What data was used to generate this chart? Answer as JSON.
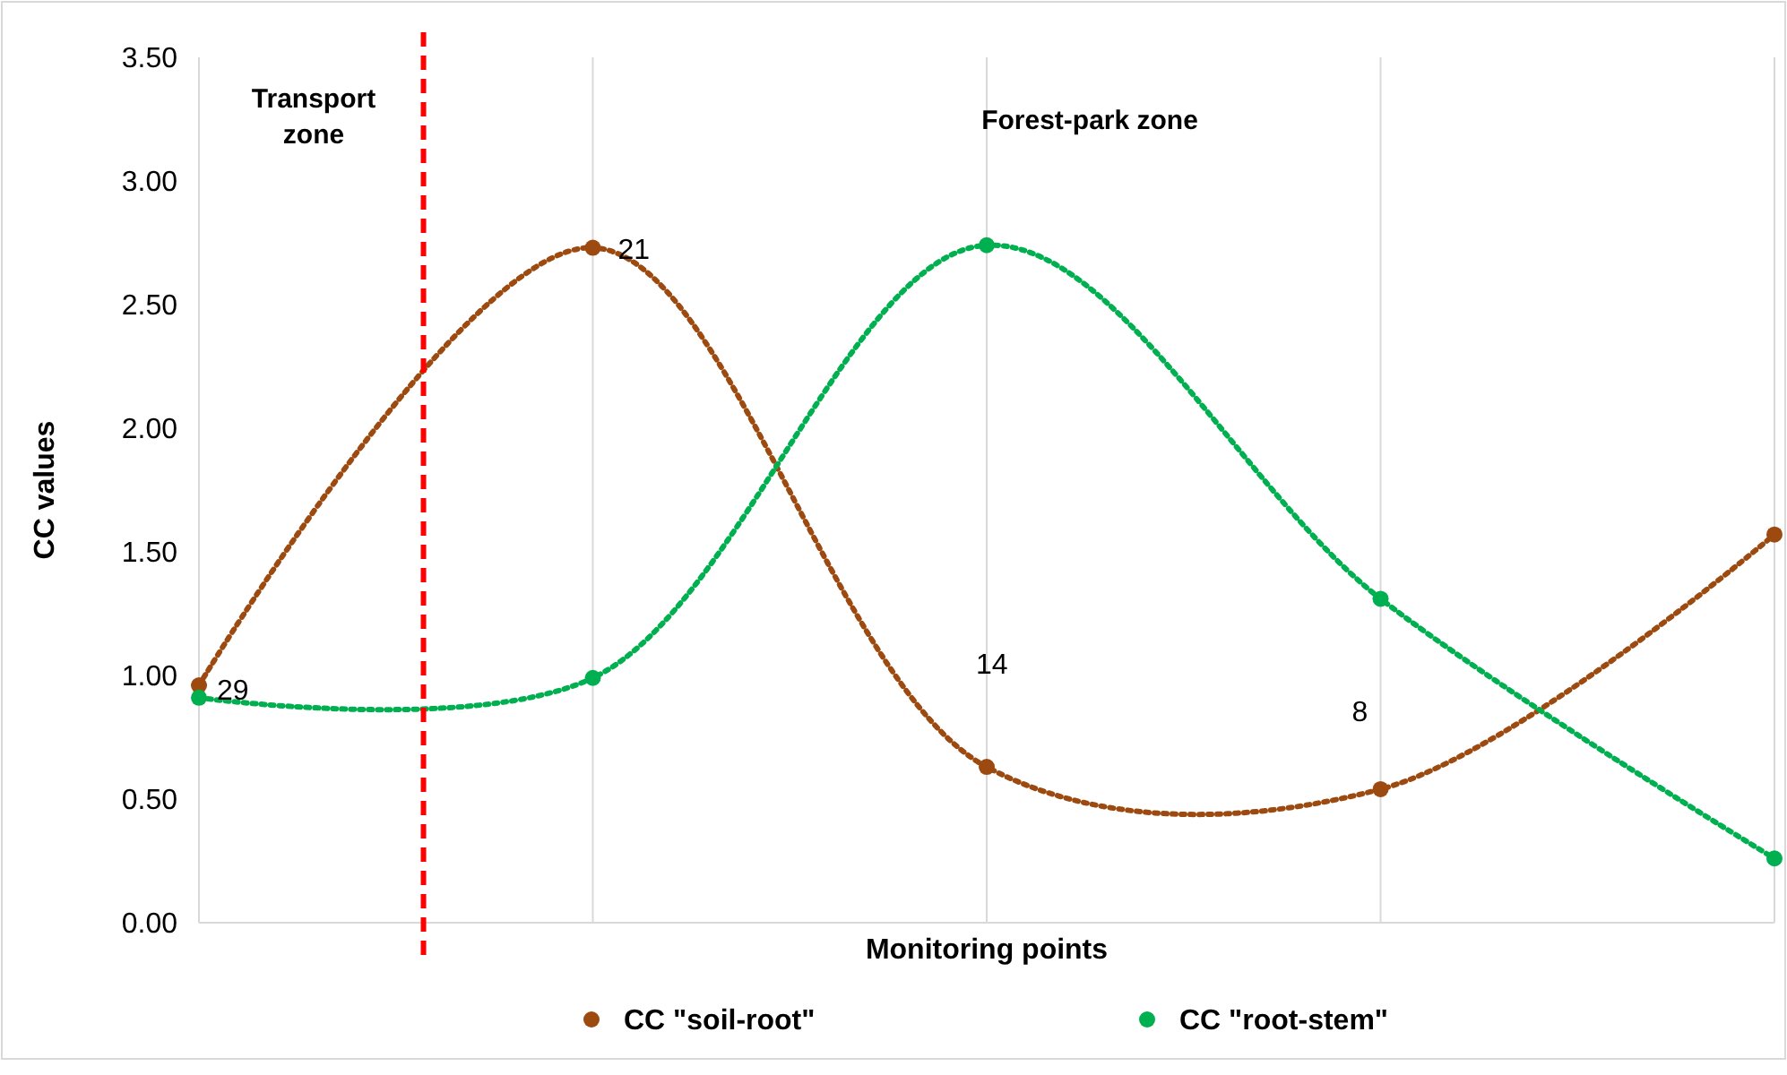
{
  "chart_data": {
    "type": "line",
    "xlabel": "Monitoring points",
    "ylabel": "CC values",
    "categories": [
      null,
      null,
      null,
      null,
      null
    ],
    "ylim": [
      0,
      3.5
    ],
    "yticks": [
      {
        "value": 0,
        "label": "0.00"
      },
      {
        "value": 0.5,
        "label": "0.50"
      },
      {
        "value": 1,
        "label": "1.00"
      },
      {
        "value": 1.5,
        "label": "1.50"
      },
      {
        "value": 2,
        "label": "2.00"
      },
      {
        "value": 2.5,
        "label": "2.50"
      },
      {
        "value": 3,
        "label": "3.00"
      },
      {
        "value": 3.5,
        "label": "3.50"
      }
    ],
    "grid": "x",
    "legend": "bottom",
    "marker": "circle",
    "line_style": "dotted",
    "series": [
      {
        "name": "CC \"soil-root\"",
        "color": "#9c4a10",
        "values": [
          0.96,
          2.73,
          0.63,
          0.54,
          1.57
        ]
      },
      {
        "name": "CC \"root-stem\"",
        "color": "#00b050",
        "values": [
          0.91,
          0.99,
          2.74,
          1.31,
          0.26
        ]
      }
    ],
    "annotations": [
      "Transport zone",
      "Forest-park zone",
      "29",
      "21",
      "14",
      "8"
    ]
  }
}
